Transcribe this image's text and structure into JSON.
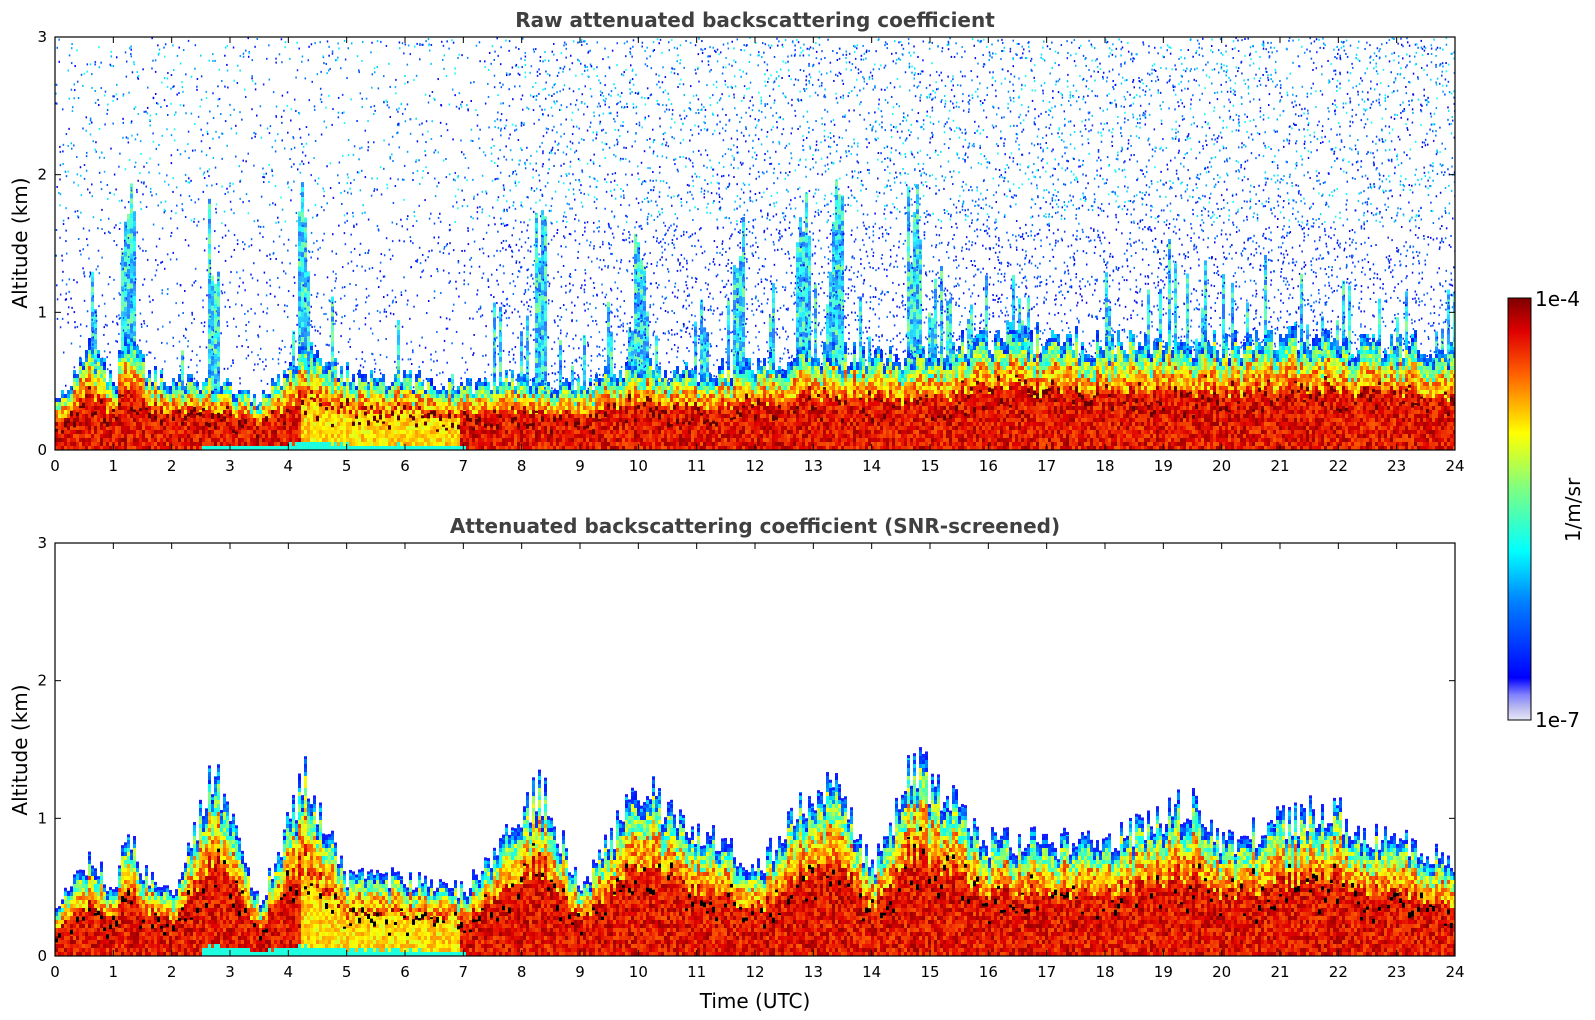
{
  "chart_data": [
    {
      "type": "heatmap",
      "title": "Raw attenuated backscattering coefficient",
      "xlabel": "",
      "ylabel": "Altitude (km)",
      "xlim": [
        0,
        24
      ],
      "ylim": [
        0,
        3
      ],
      "x_ticks": [
        0,
        1,
        2,
        3,
        4,
        5,
        6,
        7,
        8,
        9,
        10,
        11,
        12,
        13,
        14,
        15,
        16,
        17,
        18,
        19,
        20,
        21,
        22,
        23,
        24
      ],
      "y_ticks": [
        0,
        1,
        2,
        3
      ],
      "layer_top_km": [
        [
          0,
          0.35
        ],
        [
          0.6,
          0.72
        ],
        [
          1.0,
          0.45
        ],
        [
          1.2,
          0.9
        ],
        [
          1.5,
          0.6
        ],
        [
          2.0,
          0.45
        ],
        [
          2.7,
          0.5
        ],
        [
          3.5,
          0.35
        ],
        [
          4.2,
          0.7
        ],
        [
          5.0,
          0.55
        ],
        [
          6.0,
          0.5
        ],
        [
          7.0,
          0.45
        ],
        [
          8.0,
          0.5
        ],
        [
          9.0,
          0.45
        ],
        [
          10.0,
          0.6
        ],
        [
          11.0,
          0.55
        ],
        [
          12.0,
          0.6
        ],
        [
          13.0,
          0.7
        ],
        [
          14.0,
          0.65
        ],
        [
          15.0,
          0.7
        ],
        [
          16.0,
          0.8
        ],
        [
          17.0,
          0.8
        ],
        [
          18.0,
          0.75
        ],
        [
          19.0,
          0.8
        ],
        [
          20.0,
          0.75
        ],
        [
          21.0,
          0.8
        ],
        [
          22.0,
          0.75
        ],
        [
          23.0,
          0.75
        ],
        [
          24.0,
          0.7
        ]
      ],
      "plume_times_utc": [
        1.25,
        2.7,
        4.25,
        8.3,
        10.0,
        11.7,
        12.8,
        13.4,
        14.7
      ],
      "noise_above_layer": true
    },
    {
      "type": "heatmap",
      "title": "Attenuated backscattering coefficient (SNR-screened)",
      "xlabel": "Time (UTC)",
      "ylabel": "Altitude (km)",
      "xlim": [
        0,
        24
      ],
      "ylim": [
        0,
        3
      ],
      "x_ticks": [
        0,
        1,
        2,
        3,
        4,
        5,
        6,
        7,
        8,
        9,
        10,
        11,
        12,
        13,
        14,
        15,
        16,
        17,
        18,
        19,
        20,
        21,
        22,
        23,
        24
      ],
      "y_ticks": [
        0,
        1,
        2,
        3
      ],
      "layer_top_km": [
        [
          0,
          0.35
        ],
        [
          0.6,
          0.7
        ],
        [
          1.0,
          0.45
        ],
        [
          1.25,
          0.92
        ],
        [
          1.5,
          0.6
        ],
        [
          2.0,
          0.45
        ],
        [
          2.7,
          1.3
        ],
        [
          3.5,
          0.35
        ],
        [
          4.25,
          1.3
        ],
        [
          5.0,
          0.55
        ],
        [
          6.0,
          0.55
        ],
        [
          7.0,
          0.45
        ],
        [
          8.3,
          1.2
        ],
        [
          9.0,
          0.45
        ],
        [
          10.0,
          1.2
        ],
        [
          11.0,
          0.9
        ],
        [
          12.0,
          0.6
        ],
        [
          12.8,
          1.05
        ],
        [
          13.4,
          1.2
        ],
        [
          14.0,
          0.6
        ],
        [
          14.7,
          1.38
        ],
        [
          16.0,
          0.8
        ],
        [
          17.0,
          0.8
        ],
        [
          18.0,
          0.8
        ],
        [
          19.4,
          1.08
        ],
        [
          20.0,
          0.8
        ],
        [
          21.7,
          1.05
        ],
        [
          23.0,
          0.8
        ],
        [
          24.0,
          0.65
        ]
      ],
      "noise_above_layer": false
    }
  ],
  "colorbar": {
    "label": "1/m/sr",
    "max_label": "1e-4",
    "min_label": "1e-7",
    "colormap": "jet"
  }
}
